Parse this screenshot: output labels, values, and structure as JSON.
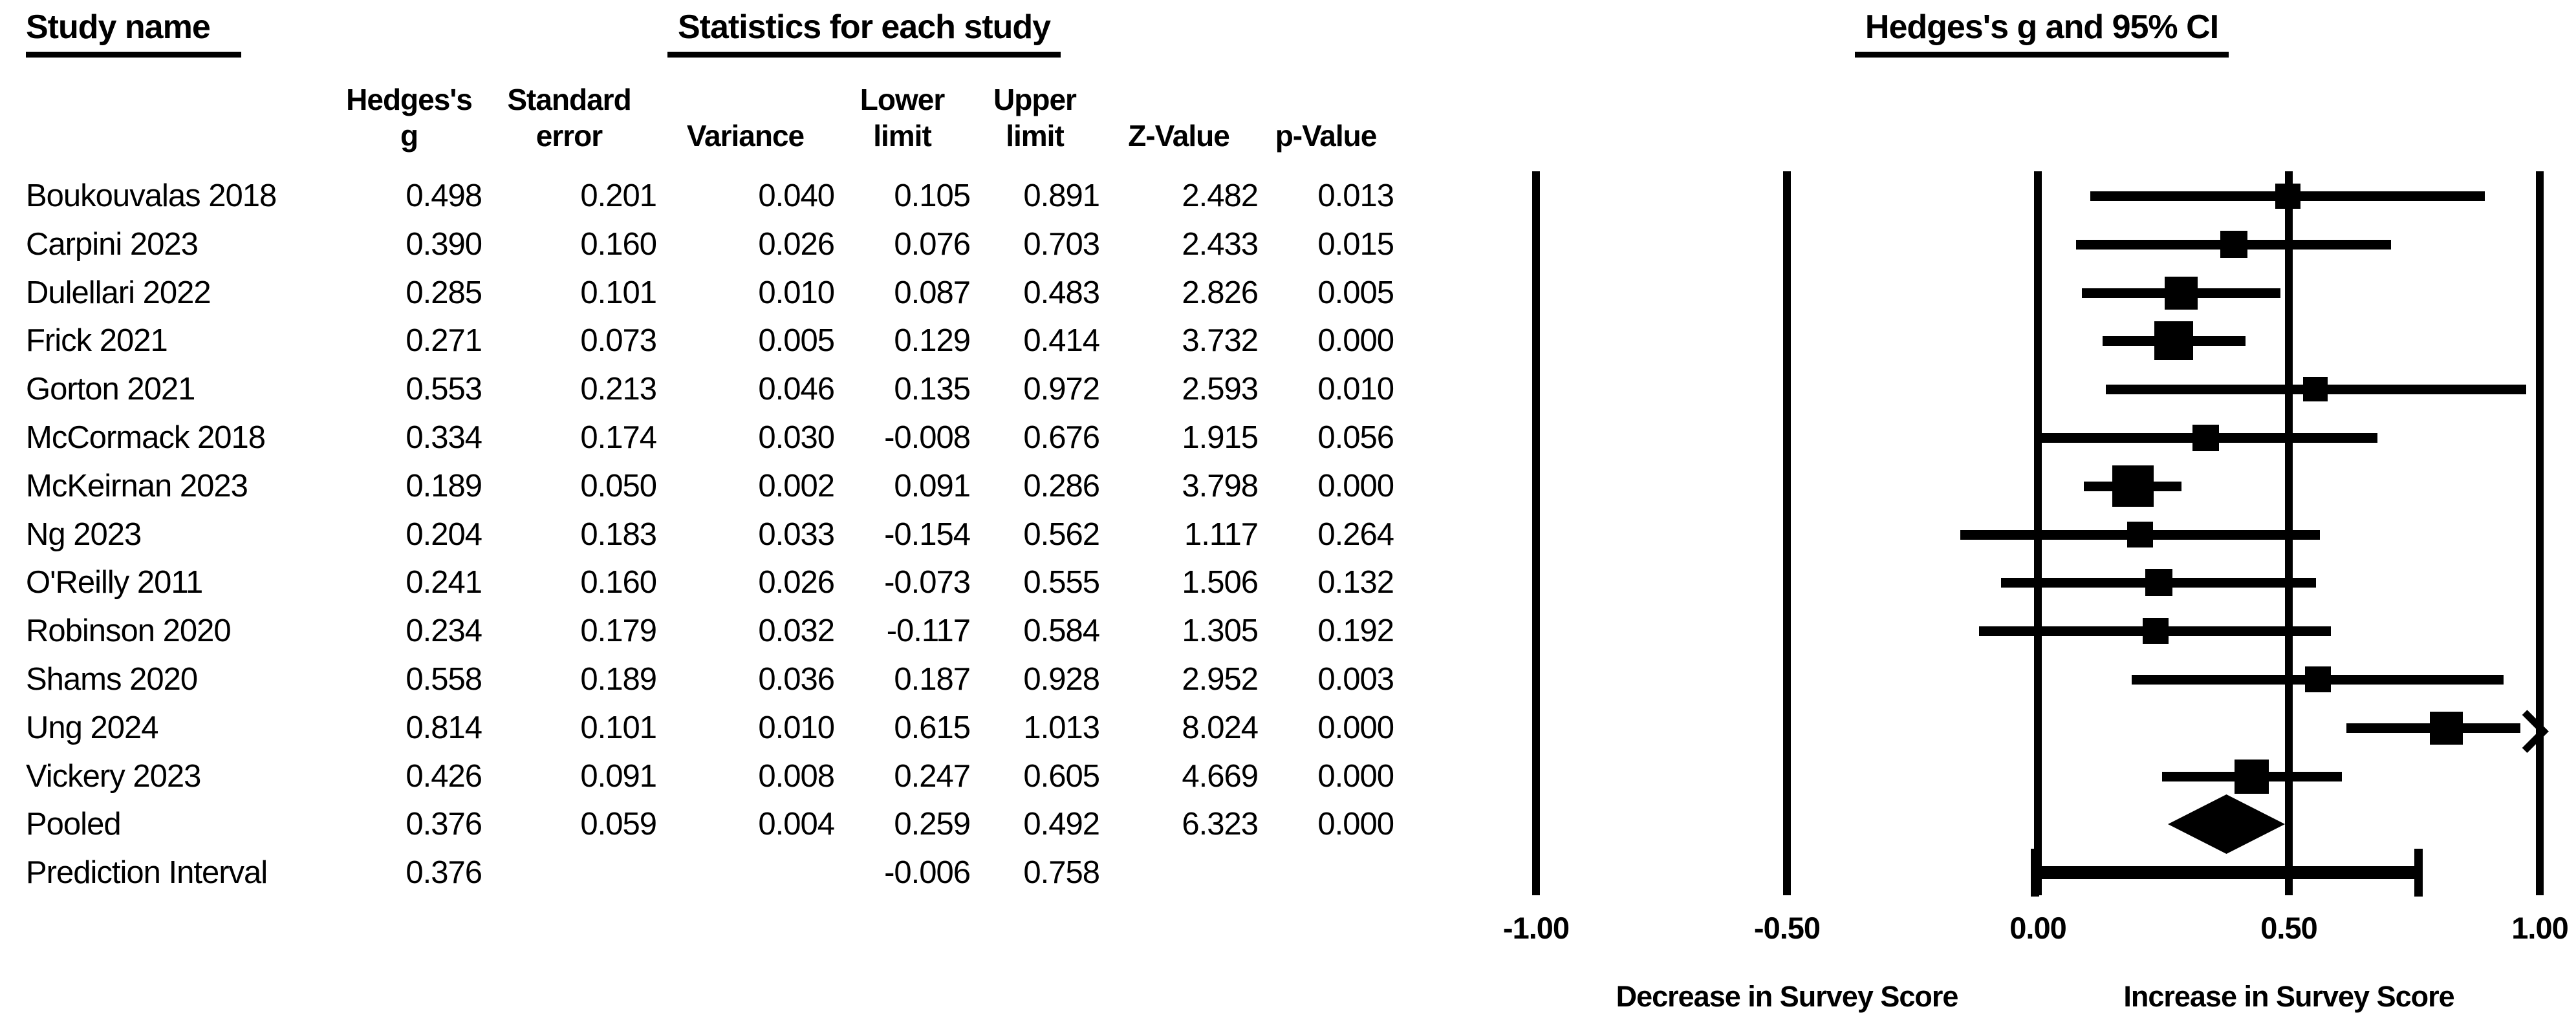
{
  "page": {
    "background_color": "#ffffff",
    "foreground_color": "#000000"
  },
  "left_table": {
    "study_column_header": "Study name",
    "section_title": "Statistics for each study",
    "column_headers": [
      "Hedges's\ng",
      "Standard\nerror",
      "Variance",
      "Lower\nlimit",
      "Upper\nlimit",
      "Z-Value",
      "p-Value"
    ]
  },
  "chart_data": {
    "type": "forest",
    "title": "Hedges's g and 95% CI",
    "x_axis": {
      "min": -1.0,
      "max": 1.0,
      "ticks": [
        -1.0,
        -0.5,
        0.0,
        0.5,
        1.0
      ],
      "tick_labels": [
        "-1.00",
        "-0.50",
        "0.00",
        "0.50",
        "1.00"
      ]
    },
    "footer_labels": {
      "left": "Decrease in Survey Score",
      "right": "Increase in Survey Score"
    },
    "rows": [
      {
        "name": "Boukouvalas 2018",
        "type": "study",
        "g": 0.498,
        "se": 0.201,
        "variance": 0.04,
        "lower": 0.105,
        "upper": 0.891,
        "z": 2.482,
        "p": 0.013
      },
      {
        "name": "Carpini 2023",
        "type": "study",
        "g": 0.39,
        "se": 0.16,
        "variance": 0.026,
        "lower": 0.076,
        "upper": 0.703,
        "z": 2.433,
        "p": 0.015
      },
      {
        "name": "Dulellari 2022",
        "type": "study",
        "g": 0.285,
        "se": 0.101,
        "variance": 0.01,
        "lower": 0.087,
        "upper": 0.483,
        "z": 2.826,
        "p": 0.005
      },
      {
        "name": "Frick 2021",
        "type": "study",
        "g": 0.271,
        "se": 0.073,
        "variance": 0.005,
        "lower": 0.129,
        "upper": 0.414,
        "z": 3.732,
        "p": 0.0
      },
      {
        "name": "Gorton 2021",
        "type": "study",
        "g": 0.553,
        "se": 0.213,
        "variance": 0.046,
        "lower": 0.135,
        "upper": 0.972,
        "z": 2.593,
        "p": 0.01
      },
      {
        "name": "McCormack 2018",
        "type": "study",
        "g": 0.334,
        "se": 0.174,
        "variance": 0.03,
        "lower": -0.008,
        "upper": 0.676,
        "z": 1.915,
        "p": 0.056
      },
      {
        "name": "McKeirnan 2023",
        "type": "study",
        "g": 0.189,
        "se": 0.05,
        "variance": 0.002,
        "lower": 0.091,
        "upper": 0.286,
        "z": 3.798,
        "p": 0.0
      },
      {
        "name": "Ng 2023",
        "type": "study",
        "g": 0.204,
        "se": 0.183,
        "variance": 0.033,
        "lower": -0.154,
        "upper": 0.562,
        "z": 1.117,
        "p": 0.264
      },
      {
        "name": "O'Reilly 2011",
        "type": "study",
        "g": 0.241,
        "se": 0.16,
        "variance": 0.026,
        "lower": -0.073,
        "upper": 0.555,
        "z": 1.506,
        "p": 0.132
      },
      {
        "name": "Robinson 2020",
        "type": "study",
        "g": 0.234,
        "se": 0.179,
        "variance": 0.032,
        "lower": -0.117,
        "upper": 0.584,
        "z": 1.305,
        "p": 0.192
      },
      {
        "name": "Shams 2020",
        "type": "study",
        "g": 0.558,
        "se": 0.189,
        "variance": 0.036,
        "lower": 0.187,
        "upper": 0.928,
        "z": 2.952,
        "p": 0.003
      },
      {
        "name": "Ung 2024",
        "type": "study",
        "g": 0.814,
        "se": 0.101,
        "variance": 0.01,
        "lower": 0.615,
        "upper": 1.013,
        "z": 8.024,
        "p": 0.0
      },
      {
        "name": "Vickery 2023",
        "type": "study",
        "g": 0.426,
        "se": 0.091,
        "variance": 0.008,
        "lower": 0.247,
        "upper": 0.605,
        "z": 4.669,
        "p": 0.0
      },
      {
        "name": "Pooled",
        "type": "pooled",
        "g": 0.376,
        "se": 0.059,
        "variance": 0.004,
        "lower": 0.259,
        "upper": 0.492,
        "z": 6.323,
        "p": 0.0
      },
      {
        "name": "Prediction Interval",
        "type": "prediction",
        "g": 0.376,
        "se": null,
        "variance": null,
        "lower": -0.006,
        "upper": 0.758,
        "z": null,
        "p": null
      }
    ]
  }
}
